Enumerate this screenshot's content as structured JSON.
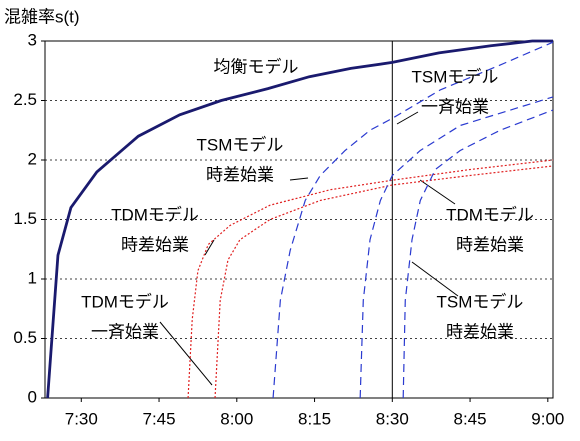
{
  "chart_data": {
    "type": "line",
    "ylabel": "混雑率s(t)",
    "xlim": [
      443,
      541
    ],
    "xticks": [
      {
        "value": 450,
        "label": "7:30"
      },
      {
        "value": 465,
        "label": "7:45"
      },
      {
        "value": 480,
        "label": "8:00"
      },
      {
        "value": 495,
        "label": "8:15"
      },
      {
        "value": 510,
        "label": "8:30"
      },
      {
        "value": 525,
        "label": "8:45"
      },
      {
        "value": 540,
        "label": "9:00"
      }
    ],
    "ylim": [
      0,
      3
    ],
    "yticks": [
      0,
      0.5,
      1,
      1.5,
      2,
      2.5,
      3
    ],
    "grid": true,
    "vline": 510,
    "series": [
      {
        "color": "#1a1a6e",
        "style": "solid",
        "x": [
          443.5,
          445.5,
          448,
          453,
          461,
          469,
          477,
          486,
          494,
          502,
          510,
          519,
          529,
          537,
          541
        ],
        "values": [
          0,
          1.2,
          1.6,
          1.9,
          2.2,
          2.38,
          2.5,
          2.6,
          2.7,
          2.77,
          2.82,
          2.9,
          2.96,
          3.0,
          3.0
        ]
      },
      {
        "color": "#e02020",
        "style": "dotted",
        "x": [
          470.6,
          471.4,
          472.5,
          474.5,
          478.7,
          486.4,
          498,
          510,
          525,
          541
        ],
        "values": [
          0,
          0.66,
          1.07,
          1.29,
          1.45,
          1.62,
          1.75,
          1.83,
          1.92,
          2.0
        ]
      },
      {
        "color": "#e02020",
        "style": "dotted",
        "x": [
          475.8,
          476.8,
          478.3,
          480.6,
          486.4,
          496.1,
          510,
          525,
          541
        ],
        "values": [
          0,
          0.82,
          1.16,
          1.33,
          1.5,
          1.66,
          1.79,
          1.87,
          1.95
        ]
      },
      {
        "color": "#2a3ad0",
        "style": "dashed",
        "x": [
          487,
          488.4,
          490.3,
          493.2,
          496.1,
          500.9,
          505.7,
          510,
          519.3,
          530.9,
          541
        ],
        "values": [
          0,
          0.82,
          1.24,
          1.66,
          1.87,
          2.08,
          2.25,
          2.35,
          2.59,
          2.8,
          2.99
        ]
      },
      {
        "color": "#2a3ad0",
        "style": "dashed",
        "x": [
          503.8,
          504.4,
          505.7,
          507.7,
          510,
          515.4,
          523.1,
          532.8,
          541
        ],
        "values": [
          0,
          0.82,
          1.33,
          1.66,
          1.87,
          2.08,
          2.29,
          2.42,
          2.53
        ]
      },
      {
        "color": "#2a3ad0",
        "style": "dashed",
        "x": [
          512.1,
          512.5,
          513.8,
          515.4,
          518.3,
          523.1,
          530.8,
          541
        ],
        "values": [
          0,
          0.82,
          1.33,
          1.66,
          1.92,
          2.08,
          2.25,
          2.42
        ]
      }
    ],
    "annotations": [
      {
        "lines": [
          "均衡モデル"
        ]
      },
      {
        "lines": [
          "TSMモデル",
          "一斉始業"
        ]
      },
      {
        "lines": [
          "TSMモデル",
          "時差始業"
        ]
      },
      {
        "lines": [
          "TDMモデル",
          "時差始業"
        ]
      },
      {
        "lines": [
          "TDMモデル",
          "一斉始業"
        ]
      },
      {
        "lines": [
          "TDMモデル",
          "時差始業"
        ]
      },
      {
        "lines": [
          "TSMモデル",
          "時差始業"
        ]
      }
    ]
  }
}
